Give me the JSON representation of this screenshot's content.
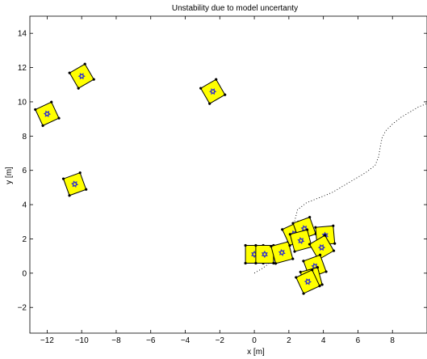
{
  "chart_data": {
    "type": "scatter",
    "title": "Unstability due to model uncertanty",
    "xlabel": "x [m]",
    "ylabel": "y [m]",
    "xlim": [
      -13,
      10
    ],
    "ylim": [
      -3.5,
      15
    ],
    "xticks": [
      -12,
      -10,
      -8,
      -6,
      -4,
      -2,
      0,
      2,
      4,
      6,
      8
    ],
    "yticks": [
      -2,
      0,
      2,
      4,
      6,
      8,
      10,
      12,
      14
    ],
    "xtick_labels": [
      "−12",
      "−10",
      "−8",
      "−6",
      "−4",
      "−2",
      "0",
      "2",
      "4",
      "6",
      "8"
    ],
    "ytick_labels": [
      "−2",
      "0",
      "2",
      "4",
      "6",
      "8",
      "10",
      "12",
      "14"
    ],
    "grid": false,
    "legend": "none",
    "colors": {
      "vehicle_fill": "#ffff00",
      "vehicle_edge": "#000000",
      "marker": "#3333cc",
      "path": "#000000"
    },
    "series": [
      {
        "marker": "square-vehicle",
        "points": [
          {
            "x": -10.0,
            "y": 11.5,
            "angle": 30
          },
          {
            "x": -12.0,
            "y": 9.3,
            "angle": 25
          },
          {
            "x": -2.4,
            "y": 10.6,
            "angle": 30
          },
          {
            "x": -10.4,
            "y": 5.2,
            "angle": 20
          },
          {
            "x": 0.0,
            "y": 1.1,
            "angle": 0
          },
          {
            "x": 0.6,
            "y": 1.1,
            "angle": 0
          },
          {
            "x": 1.6,
            "y": 1.2,
            "angle": 15
          },
          {
            "x": 2.3,
            "y": 2.3,
            "angle": 25
          },
          {
            "x": 2.9,
            "y": 2.6,
            "angle": 20
          },
          {
            "x": 2.7,
            "y": 1.9,
            "angle": 15
          },
          {
            "x": 4.1,
            "y": 2.2,
            "angle": 5
          },
          {
            "x": 3.9,
            "y": 1.5,
            "angle": 30
          },
          {
            "x": 3.5,
            "y": 0.4,
            "angle": 20
          },
          {
            "x": 3.3,
            "y": -0.3,
            "angle": 15
          },
          {
            "x": 3.1,
            "y": -0.5,
            "angle": 25
          }
        ]
      },
      {
        "style": "dotted",
        "x": [
          0.0,
          0.5,
          1.0,
          1.5,
          2.0,
          2.3,
          2.5,
          3.0,
          3.5,
          4.0,
          4.5,
          5.0,
          5.5,
          6.0,
          6.5,
          7.0,
          7.2,
          7.3,
          7.4,
          7.6,
          8.0,
          8.5,
          9.0,
          9.5,
          10.0
        ],
        "y": [
          0.0,
          0.3,
          0.7,
          1.2,
          2.0,
          2.9,
          3.7,
          4.1,
          4.3,
          4.5,
          4.7,
          5.0,
          5.3,
          5.6,
          5.9,
          6.3,
          6.8,
          7.4,
          7.9,
          8.3,
          8.7,
          9.1,
          9.4,
          9.7,
          9.9
        ]
      }
    ]
  }
}
